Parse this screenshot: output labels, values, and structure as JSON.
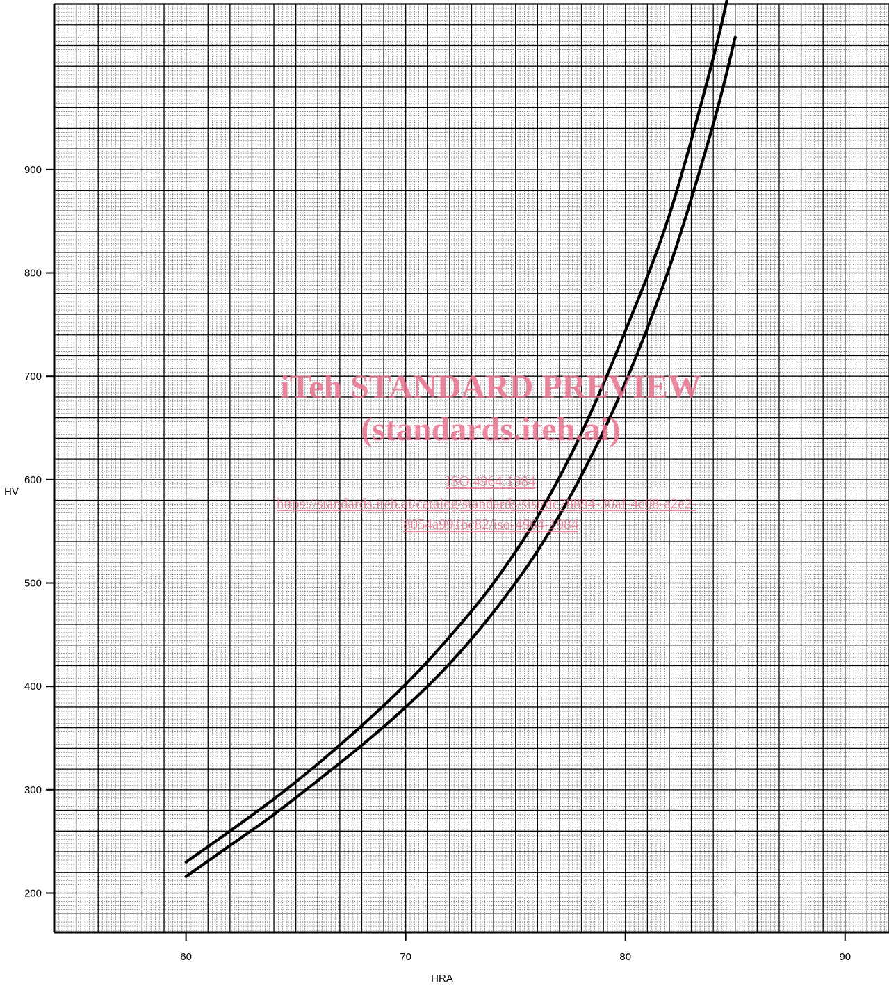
{
  "chart_data": {
    "type": "line",
    "title": "",
    "xlabel": "HRA",
    "ylabel": "HV",
    "xlim": [
      54,
      92
    ],
    "ylim": [
      162,
      1060
    ],
    "xticks": [
      60,
      70,
      80,
      90
    ],
    "yticks": [
      200,
      300,
      400,
      500,
      600,
      700,
      800,
      900
    ],
    "grid": true,
    "legend": "none",
    "line_color": "#000000",
    "series": [
      {
        "x": [
          60,
          62,
          64,
          66,
          68,
          70,
          72,
          74,
          76,
          78,
          80,
          82,
          84,
          85
        ],
        "y": [
          230,
          260,
          291,
          325,
          362,
          402,
          448,
          500,
          564,
          645,
          744,
          856,
          1008,
          1101
        ]
      },
      {
        "x": [
          60,
          62,
          64,
          66,
          68,
          70,
          72,
          74,
          76,
          78,
          80,
          82,
          84,
          85
        ],
        "y": [
          216,
          246,
          276,
          309,
          343,
          380,
          422,
          472,
          531,
          604,
          694,
          805,
          944,
          1028
        ]
      }
    ]
  },
  "watermark": {
    "color": "#e8738f",
    "line1": "iTeh STANDARD PREVIEW",
    "line2": "(standards.iteh.ai)",
    "line3": "ISO 4964:1984",
    "line4": "https://standards.iteh.ai/catalog/standards/sist/dc78884-30af-4c08-a2e2-",
    "line5": "8054a991bc82/iso-4964-1984"
  }
}
